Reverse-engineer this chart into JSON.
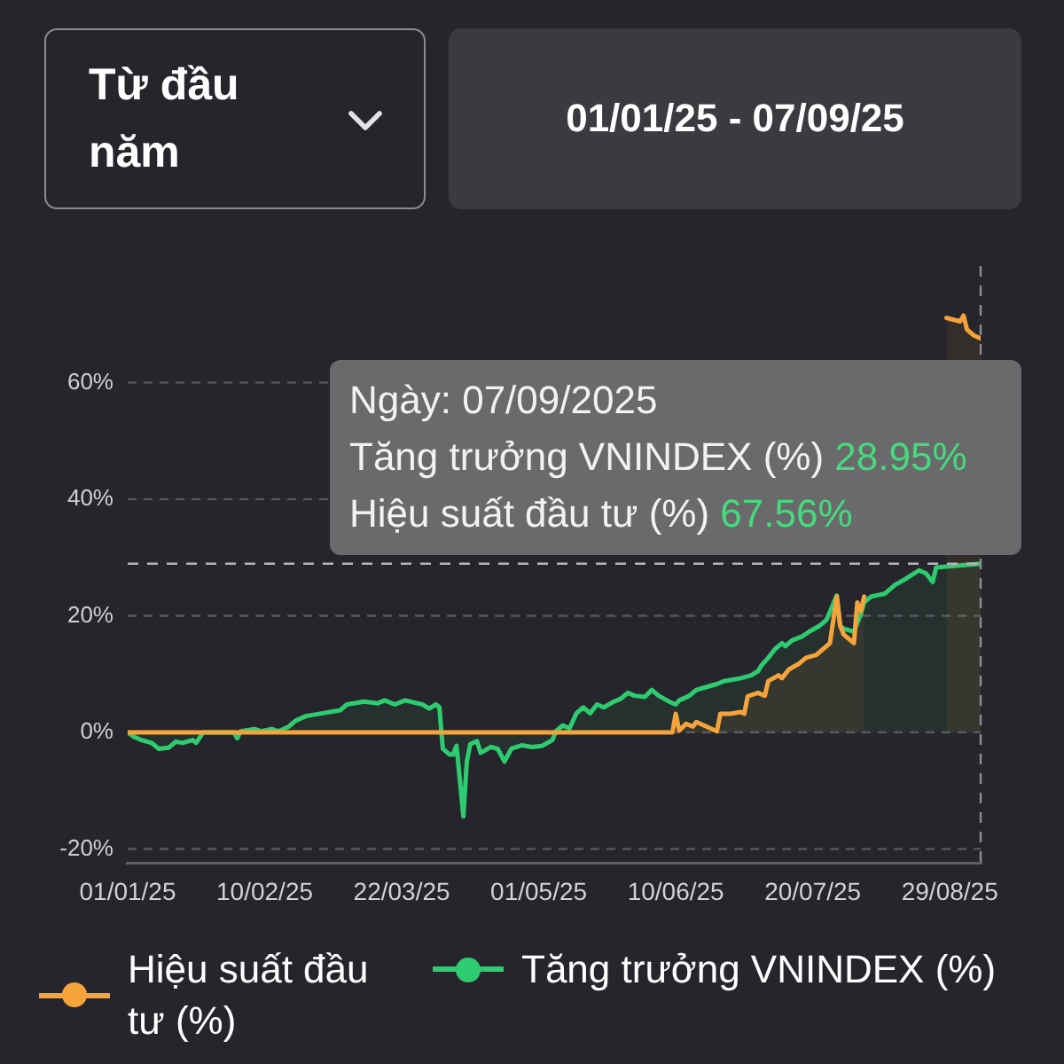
{
  "chart_data": {
    "type": "area",
    "title": "Từ đầu năm",
    "subtitle": "01/01/25 - 07/09/25",
    "annotations": [
      "Ngày: 07/09/2025",
      "Tăng trưởng VNINDEX (%) 28.95%",
      "Hiệu suất đầu tư (%) 67.56%"
    ],
    "series": [
      {
        "name": "Hiệu suất đầu tư (%)",
        "color": "#f5a33b",
        "x": [
          "2025-01-01",
          "2025-06-09",
          "2025-06-10",
          "2025-06-11",
          "2025-06-13",
          "2025-06-15",
          "2025-06-16",
          "2025-06-19",
          "2025-06-22",
          "2025-06-23",
          "2025-06-26",
          "2025-06-29",
          "2025-06-30",
          "2025-07-01",
          "2025-07-04",
          "2025-07-06",
          "2025-07-07",
          "2025-07-10",
          "2025-07-11",
          "2025-07-13",
          "2025-07-16",
          "2025-07-18",
          "2025-07-21",
          "2025-07-23",
          "2025-07-25",
          "2025-07-27",
          "2025-07-28",
          "2025-07-29",
          "2025-07-30",
          "2025-08-01",
          "2025-08-02",
          "2025-08-03",
          "2025-08-04",
          "2025-08-15",
          "2025-08-28",
          "2025-09-01",
          "2025-09-02",
          "2025-09-03",
          "2025-09-05",
          "2025-09-07"
        ],
        "values": [
          0,
          0,
          3.2,
          0.3,
          1.5,
          1,
          1.8,
          1,
          0.2,
          3.2,
          3.2,
          3.5,
          3.2,
          6.2,
          6.8,
          6.3,
          8.8,
          9.8,
          9.3,
          10.8,
          11.8,
          12.8,
          13.3,
          14.3,
          15.3,
          23.3,
          18.3,
          16.8,
          16.3,
          15.3,
          22.3,
          20.8,
          23.3,
          null,
          71.1,
          70.5,
          71.5,
          69.1,
          68.1,
          67.56
        ]
      },
      {
        "name": "Tăng trưởng VNINDEX (%)",
        "color": "#2ecc71",
        "x": [
          "2025-01-01",
          "2025-01-03",
          "2025-01-05",
          "2025-01-08",
          "2025-01-10",
          "2025-01-13",
          "2025-01-15",
          "2025-01-17",
          "2025-01-20",
          "2025-01-21",
          "2025-01-23",
          "2025-02-01",
          "2025-02-02",
          "2025-02-03",
          "2025-02-07",
          "2025-02-09",
          "2025-02-12",
          "2025-02-14",
          "2025-02-17",
          "2025-02-19",
          "2025-02-22",
          "2025-02-27",
          "2025-03-04",
          "2025-03-06",
          "2025-03-11",
          "2025-03-15",
          "2025-03-17",
          "2025-03-20",
          "2025-03-23",
          "2025-03-28",
          "2025-03-30",
          "2025-04-01",
          "2025-04-02",
          "2025-04-03",
          "2025-04-05",
          "2025-04-06",
          "2025-04-07",
          "2025-04-09",
          "2025-04-10",
          "2025-04-11",
          "2025-04-13",
          "2025-04-14",
          "2025-04-17",
          "2025-04-19",
          "2025-04-21",
          "2025-04-23",
          "2025-04-26",
          "2025-04-29",
          "2025-05-02",
          "2025-05-05",
          "2025-05-06",
          "2025-05-08",
          "2025-05-10",
          "2025-05-12",
          "2025-05-14",
          "2025-05-16",
          "2025-05-18",
          "2025-05-20",
          "2025-05-23",
          "2025-05-25",
          "2025-05-27",
          "2025-05-29",
          "2025-06-01",
          "2025-06-03",
          "2025-06-05",
          "2025-06-08",
          "2025-06-10",
          "2025-06-11",
          "2025-06-14",
          "2025-06-16",
          "2025-06-19",
          "2025-06-22",
          "2025-06-24",
          "2025-06-27",
          "2025-06-29",
          "2025-07-02",
          "2025-07-04",
          "2025-07-05",
          "2025-07-07",
          "2025-07-09",
          "2025-07-11",
          "2025-07-12",
          "2025-07-14",
          "2025-07-17",
          "2025-07-19",
          "2025-07-22",
          "2025-07-24",
          "2025-07-27",
          "2025-07-28",
          "2025-07-29",
          "2025-08-01",
          "2025-08-03",
          "2025-08-04",
          "2025-08-06",
          "2025-08-10",
          "2025-08-13",
          "2025-08-16",
          "2025-08-20",
          "2025-08-22",
          "2025-08-24",
          "2025-08-25",
          "2025-09-07"
        ],
        "values": [
          0,
          -0.8,
          -1.3,
          -1.8,
          -2.8,
          -2.6,
          -1.6,
          -1.8,
          -1.3,
          -1.8,
          0,
          0,
          -1,
          0.2,
          0.6,
          0.2,
          0.6,
          0.2,
          1,
          2,
          2.8,
          3.3,
          3.8,
          4.8,
          5.3,
          5,
          5.5,
          4.8,
          5.5,
          4.8,
          4.1,
          4.8,
          4.3,
          -2.8,
          -3.8,
          -3.8,
          -2.3,
          -14.4,
          -5,
          -2,
          -1.5,
          -3.5,
          -2.5,
          -2.8,
          -5,
          -2.8,
          -2.2,
          -2.5,
          -2.3,
          -1.3,
          0.2,
          1.2,
          0.7,
          3.3,
          4.3,
          3.3,
          4.8,
          4.3,
          5.3,
          5.8,
          6.8,
          6.3,
          6.1,
          7.3,
          6.3,
          5.3,
          4.8,
          5.5,
          6.3,
          7.3,
          7.8,
          8.3,
          8.8,
          9.1,
          9.3,
          9.8,
          10.5,
          11.5,
          12.8,
          14.3,
          15.3,
          14.8,
          15.8,
          16.5,
          17.3,
          18.3,
          19.3,
          23.5,
          18.3,
          17.8,
          17.3,
          20.3,
          22.3,
          23.3,
          23.8,
          25.3,
          26.3,
          27.8,
          27.3,
          25.8,
          28.3,
          28.95
        ]
      }
    ],
    "xlim": [
      "2025-01-01",
      "2025-09-07"
    ],
    "xticks": [
      {
        "value": "2025-01-01",
        "label": "01/01/25"
      },
      {
        "value": "2025-02-10",
        "label": "10/02/25"
      },
      {
        "value": "2025-03-22",
        "label": "22/03/25"
      },
      {
        "value": "2025-05-01",
        "label": "01/05/25"
      },
      {
        "value": "2025-06-10",
        "label": "10/06/25"
      },
      {
        "value": "2025-07-20",
        "label": "20/07/25"
      },
      {
        "value": "2025-08-29",
        "label": "29/08/25"
      }
    ],
    "ylim": [
      -22.5,
      80
    ],
    "yticks": [
      {
        "value": -20,
        "label": "-20%"
      },
      {
        "value": 0,
        "label": "0%"
      },
      {
        "value": 20,
        "label": "20%"
      },
      {
        "value": 40,
        "label": "40%"
      },
      {
        "value": 60,
        "label": "60%"
      }
    ],
    "ref_lines": [
      {
        "axis": "x",
        "value": "2025-09-07",
        "color": "#8e8d93",
        "line_style": "dashed"
      },
      {
        "axis": "y",
        "value": 28.95,
        "color": "#b5b4b9",
        "line_style": "dashed"
      }
    ],
    "grid": "y",
    "legend": "bottom",
    "line_style": "solid"
  }
}
